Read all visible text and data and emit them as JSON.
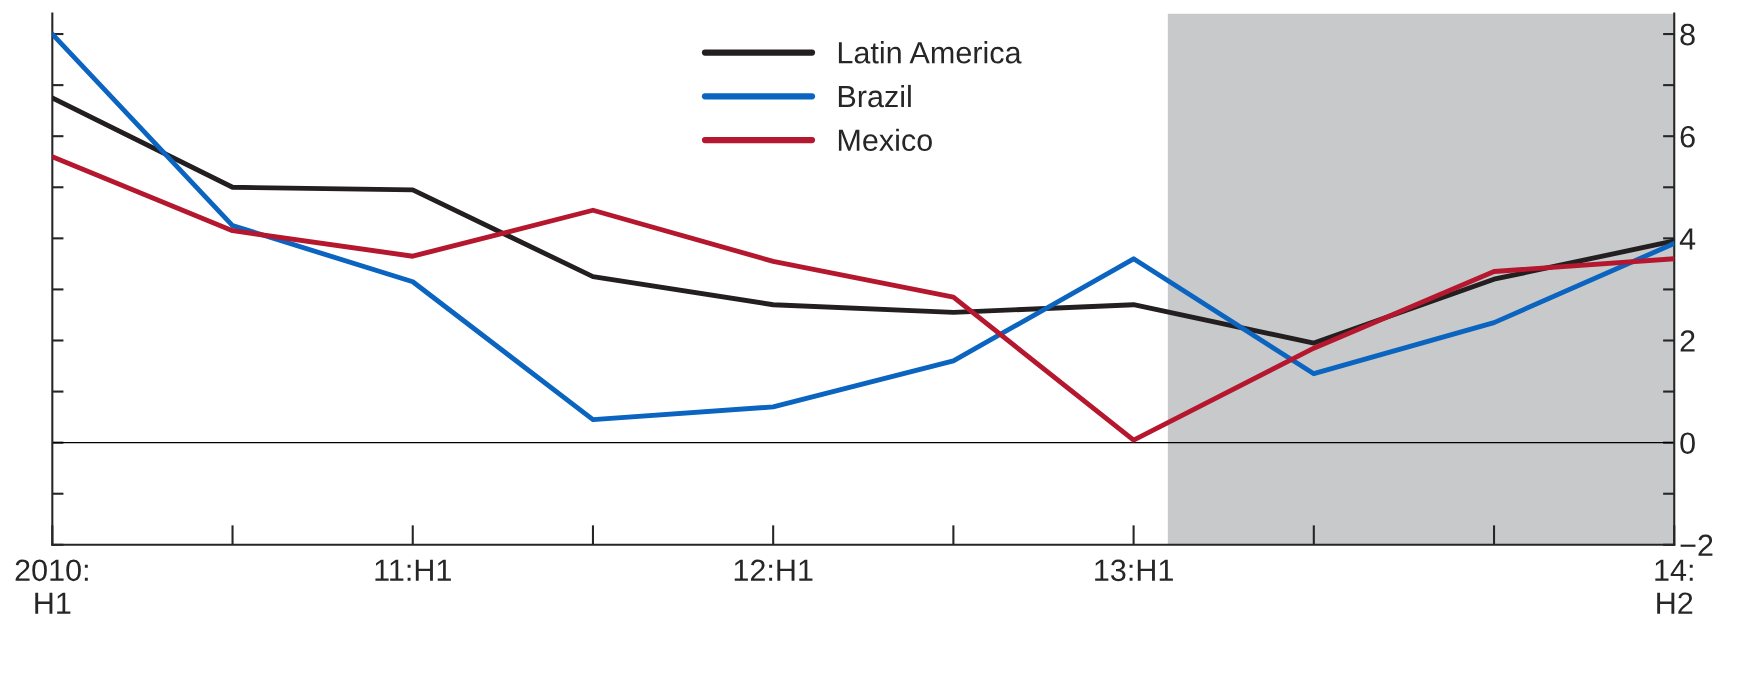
{
  "chart_data": {
    "type": "line",
    "categories": [
      "2010:\nH1",
      null,
      "11:H1",
      null,
      "12:H1",
      null,
      "13:H1",
      null,
      null,
      "14:\nH2"
    ],
    "series": [
      {
        "name": "Latin America",
        "color": "#231f20",
        "values": [
          6.75,
          5.0,
          4.95,
          3.25,
          2.7,
          2.55,
          2.7,
          1.95,
          3.2,
          3.95
        ]
      },
      {
        "name": "Brazil",
        "color": "#0a64c0",
        "values": [
          8.0,
          4.25,
          3.15,
          0.45,
          0.7,
          1.6,
          3.6,
          1.35,
          2.35,
          3.9
        ]
      },
      {
        "name": "Mexico",
        "color": "#b5182e",
        "values": [
          5.6,
          4.15,
          3.65,
          4.55,
          3.55,
          2.85,
          0.05,
          1.85,
          3.35,
          3.6
        ]
      }
    ],
    "ylim": [
      -2,
      8.4
    ],
    "yticks": [
      {
        "value": -2,
        "label": "−2"
      },
      {
        "value": -1,
        "label": null
      },
      0,
      {
        "value": 1,
        "label": null
      },
      2,
      {
        "value": 3,
        "label": null
      },
      4,
      {
        "value": 5,
        "label": null
      },
      6,
      {
        "value": 7,
        "label": null
      },
      8
    ],
    "ref_lines": [
      {
        "axis": "y",
        "value": 0,
        "color": "#000000"
      }
    ],
    "legend": "top",
    "grid": false,
    "line_style": "solid",
    "marker": "none"
  }
}
